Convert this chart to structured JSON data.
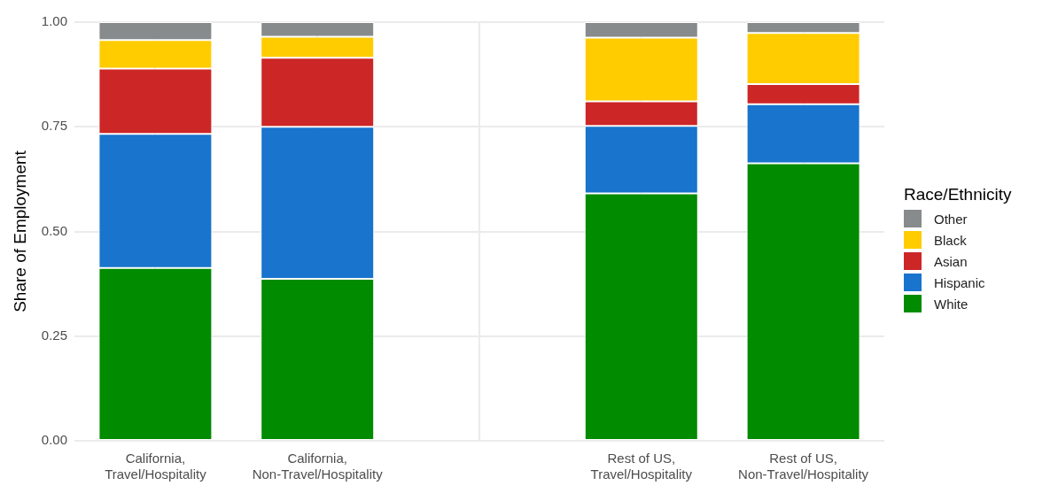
{
  "chart_data": {
    "type": "bar",
    "stacked": true,
    "ylabel": "Share of Employment",
    "legend_title": "Race/Ethnicity",
    "legend": "right",
    "grid": true,
    "categories": [
      "California,\nTravel/Hospitality",
      "California,\nNon-Travel/Hospitality",
      null,
      "Rest of US,\nTravel/Hospitality",
      "Rest of US,\nNon-Travel/Hospitality"
    ],
    "ylim": [
      0,
      1
    ],
    "yticks": [
      {
        "value": 0,
        "label": "0.00"
      },
      {
        "value": 0.25,
        "label": "0.25"
      },
      {
        "value": 0.5,
        "label": "0.50"
      },
      {
        "value": 0.75,
        "label": "0.75"
      },
      {
        "value": 1,
        "label": "1.00"
      }
    ],
    "series": [
      {
        "name": "White",
        "color": "#008b00",
        "values": [
          0.413,
          0.387,
          null,
          0.591,
          0.663
        ]
      },
      {
        "name": "Hispanic",
        "color": "#1874cd",
        "values": [
          0.32,
          0.363,
          null,
          0.161,
          0.141
        ]
      },
      {
        "name": "Asian",
        "color": "#cd2626",
        "values": [
          0.156,
          0.165,
          null,
          0.059,
          0.048
        ]
      },
      {
        "name": "Black",
        "color": "#ffcc00",
        "values": [
          0.068,
          0.05,
          null,
          0.152,
          0.122
        ]
      },
      {
        "name": "Other",
        "color": "#878b8b",
        "values": [
          0.043,
          0.035,
          null,
          0.037,
          0.026
        ]
      }
    ]
  }
}
